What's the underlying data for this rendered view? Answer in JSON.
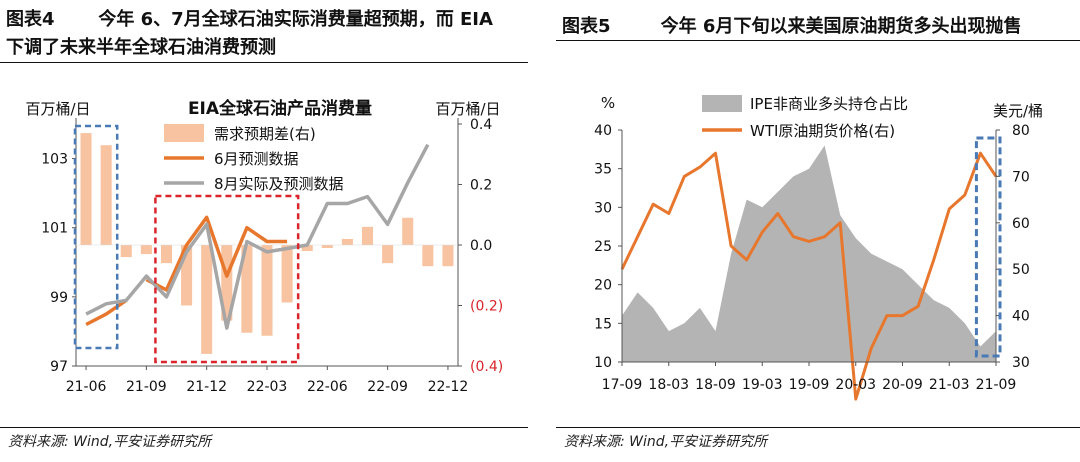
{
  "panels": {
    "left": {
      "title_line1": "图表4       今年 6、7月全球石油实际消费量超预期，而 EIA",
      "title_line2": "下调了未来半年全球石油消费预测",
      "source": "资料来源: Wind,平安证券研究所"
    },
    "right": {
      "title": "图表5        今年 6月下旬以来美国原油期货多头出现抛售",
      "source": "资料来源: Wind,平安证券研究所"
    }
  },
  "colors": {
    "bar_orange": "#f7c3a0",
    "line_orange": "#e8772e",
    "line_gray": "#a6a6a6",
    "area_gray": "#b4b4b4",
    "box_blue": "#4a7ab5",
    "box_red": "#d9252b",
    "negative_red": "#d9252b"
  },
  "chart_data": [
    {
      "type": "bar+line",
      "title": "EIA全球石油产品消费量",
      "ylabel_left": "百万桶/日",
      "ylabel_right": "百万桶/日",
      "ylim_left": [
        97,
        104
      ],
      "ylim_right": [
        -0.4,
        0.4
      ],
      "left_ticks": [
        "97",
        "99",
        "101",
        "103"
      ],
      "right_ticks": [
        "(0.4)",
        "(0.2)",
        "0.0",
        "0.2",
        "0.4"
      ],
      "x_ticks": [
        "21-06",
        "21-09",
        "21-12",
        "22-03",
        "22-06",
        "22-09",
        "22-12"
      ],
      "categories": [
        "21-06",
        "21-07",
        "21-08",
        "21-09",
        "21-10",
        "21-11",
        "21-12",
        "22-01",
        "22-02",
        "22-03",
        "22-04",
        "22-05",
        "22-06",
        "22-07",
        "22-08",
        "22-09",
        "22-10",
        "22-11",
        "22-12"
      ],
      "legend": [
        "需求预期差(右)",
        "6月预测数据",
        "8月实际及预测数据"
      ],
      "series": [
        {
          "name": "需求预期差(右)",
          "axis": "right",
          "kind": "bar",
          "values": [
            0.37,
            0.33,
            -0.04,
            -0.03,
            -0.06,
            -0.2,
            -0.36,
            -0.25,
            -0.29,
            -0.3,
            -0.19,
            -0.02,
            -0.01,
            0.02,
            0.06,
            -0.06,
            0.09,
            -0.07,
            -0.07
          ]
        },
        {
          "name": "6月预测数据",
          "axis": "left",
          "kind": "line",
          "values": [
            98.2,
            98.5,
            98.9,
            null,
            null,
            null,
            null,
            null,
            null,
            null,
            null,
            null,
            null,
            null,
            null,
            null,
            null,
            null,
            null
          ]
        },
        {
          "name": "6月预测数据",
          "axis": "left",
          "kind": "line",
          "values": [
            null,
            null,
            null,
            99.5,
            99.2,
            100.5,
            101.3,
            99.6,
            101.0,
            100.6,
            100.6,
            null,
            null,
            null,
            null,
            null,
            null,
            null,
            null
          ]
        },
        {
          "name": "8月实际及预测数据",
          "axis": "left",
          "kind": "line",
          "values": [
            98.5,
            98.8,
            98.9,
            99.6,
            99.0,
            100.3,
            101.1,
            98.1,
            100.6,
            100.3,
            100.4,
            100.5,
            101.7,
            101.7,
            101.9,
            101.1,
            102.3,
            103.4,
            null
          ]
        }
      ],
      "annotation_boxes": [
        {
          "color": "blue",
          "from": "21-06",
          "to": "21-07"
        },
        {
          "color": "red",
          "from": "21-10",
          "to": "22-04"
        }
      ]
    },
    {
      "type": "area+line",
      "ylabel_left": "%",
      "ylabel_right": "美元/桶",
      "ylim_left": [
        10,
        40
      ],
      "ylim_right": [
        30,
        80
      ],
      "left_ticks": [
        "10",
        "15",
        "20",
        "25",
        "30",
        "35",
        "40"
      ],
      "right_ticks": [
        "30",
        "40",
        "50",
        "60",
        "70",
        "80"
      ],
      "x_ticks": [
        "17-09",
        "18-03",
        "18-09",
        "19-03",
        "19-09",
        "20-03",
        "20-09",
        "21-03",
        "21-09"
      ],
      "legend": [
        "IPE非商业多头持仓占比",
        "WTI原油期货价格(右)"
      ],
      "series": [
        {
          "name": "IPE非商业多头持仓占比",
          "axis": "left",
          "kind": "area",
          "x": [
            "17-09",
            "17-11",
            "18-01",
            "18-03",
            "18-05",
            "18-07",
            "18-09",
            "18-11",
            "19-01",
            "19-03",
            "19-05",
            "19-07",
            "19-09",
            "19-11",
            "20-01",
            "20-03",
            "20-05",
            "20-07",
            "20-09",
            "20-11",
            "21-01",
            "21-03",
            "21-05",
            "21-07",
            "21-09"
          ],
          "values": [
            16,
            19,
            17,
            14,
            15,
            17,
            14,
            24,
            31,
            30,
            32,
            34,
            35,
            38,
            29,
            26,
            24,
            23,
            22,
            20,
            18,
            17,
            15,
            12,
            14
          ]
        },
        {
          "name": "WTI原油期货价格(右)",
          "axis": "right",
          "kind": "line",
          "x": [
            "17-09",
            "17-11",
            "18-01",
            "18-03",
            "18-05",
            "18-07",
            "18-09",
            "18-11",
            "19-01",
            "19-03",
            "19-05",
            "19-07",
            "19-09",
            "19-11",
            "20-01",
            "20-03",
            "20-05",
            "20-07",
            "20-09",
            "20-11",
            "21-01",
            "21-03",
            "21-05",
            "21-07",
            "21-09"
          ],
          "values": [
            50,
            57,
            64,
            62,
            70,
            72,
            75,
            55,
            52,
            58,
            62,
            57,
            56,
            57,
            60,
            22,
            33,
            40,
            40,
            42,
            52,
            63,
            66,
            75,
            70
          ]
        }
      ],
      "annotation_boxes": [
        {
          "color": "blue",
          "from": "21-07",
          "to": "21-09"
        }
      ]
    }
  ]
}
